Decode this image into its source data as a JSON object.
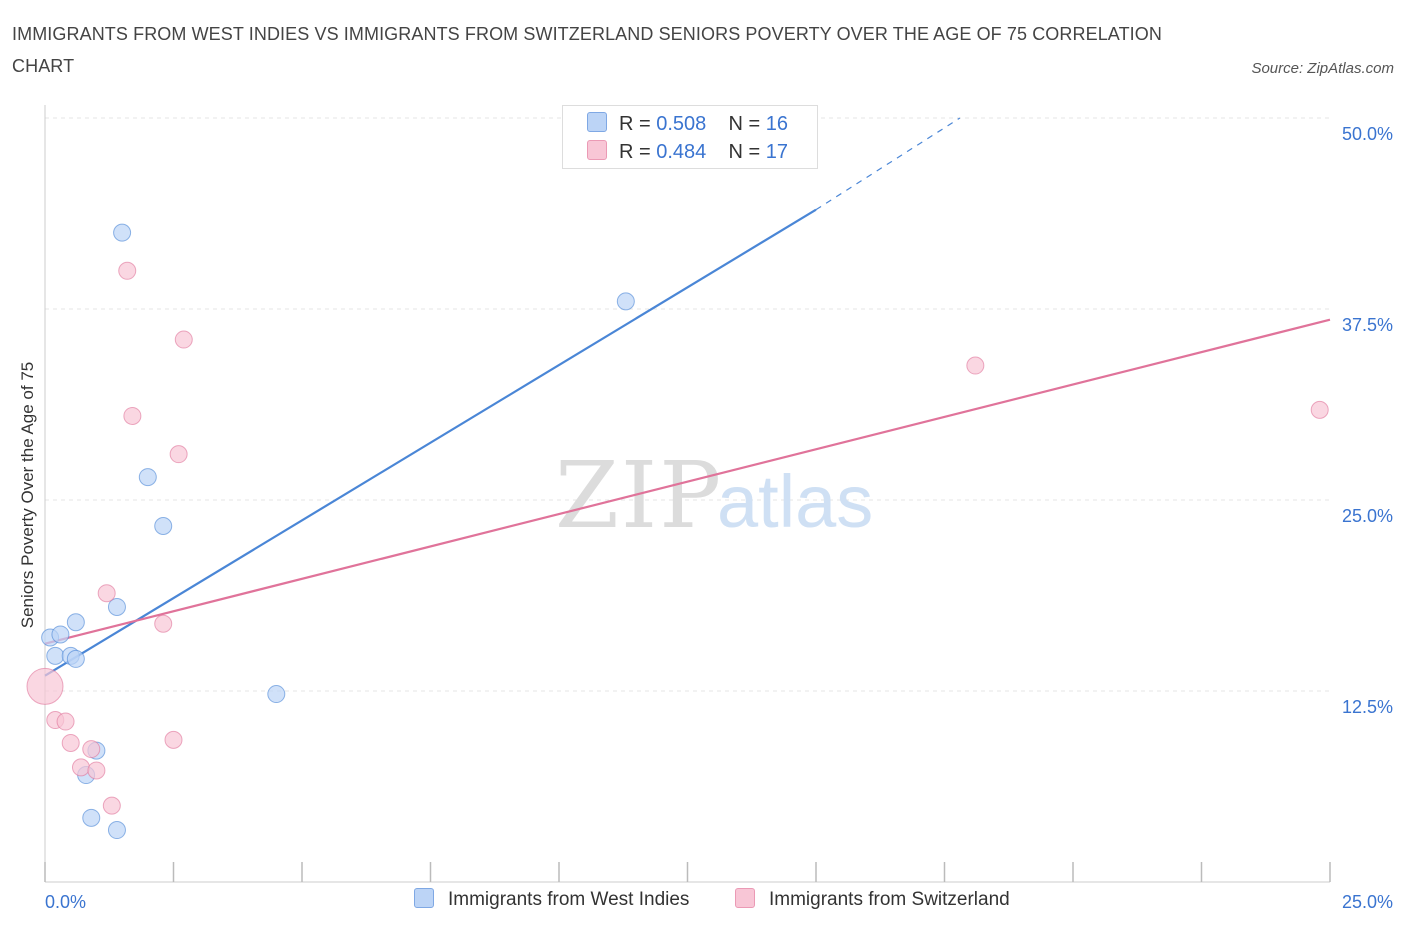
{
  "chart_data": {
    "type": "scatter",
    "title": "IMMIGRANTS FROM WEST INDIES VS IMMIGRANTS FROM SWITZERLAND SENIORS POVERTY OVER THE AGE OF 75 CORRELATION CHART",
    "source": "Source: ZipAtlas.com",
    "xlabel": "",
    "ylabel": "Seniors Poverty Over the Age of 75",
    "xlim": [
      0,
      25
    ],
    "ylim": [
      0,
      50
    ],
    "x_tick_labels": [
      "0.0%",
      "25.0%"
    ],
    "y_tick_labels": [
      "12.5%",
      "25.0%",
      "37.5%",
      "50.0%"
    ],
    "y_ticks": [
      12.5,
      25,
      37.5,
      50
    ],
    "watermark": {
      "zip": "ZIP",
      "atlas": "atlas"
    },
    "legend": {
      "r_label": "R = ",
      "n_label": "N = "
    },
    "series": [
      {
        "name": "Immigrants from West Indies",
        "color": "#4a86d6",
        "fill": "#bcd4f6",
        "r": "0.508",
        "n": "16",
        "points": [
          [
            0.1,
            16.0
          ],
          [
            0.3,
            16.2
          ],
          [
            0.2,
            14.8
          ],
          [
            0.5,
            14.8
          ],
          [
            0.6,
            14.6
          ],
          [
            0.6,
            17.0
          ],
          [
            1.4,
            18.0
          ],
          [
            1.5,
            42.5
          ],
          [
            2.0,
            26.5
          ],
          [
            2.3,
            23.3
          ],
          [
            0.8,
            7.0
          ],
          [
            1.0,
            8.6
          ],
          [
            0.9,
            4.2
          ],
          [
            1.4,
            3.4
          ],
          [
            4.5,
            12.3
          ],
          [
            11.3,
            38.0
          ]
        ],
        "trend": {
          "x0": 0,
          "y0": 13.5,
          "x1": 15.0,
          "y1": 44.0,
          "dash_x1": 17.8,
          "dash_y1": 50.0
        }
      },
      {
        "name": "Immigrants from Switzerland",
        "color": "#e0739a",
        "fill": "#f8c6d6",
        "r": "0.484",
        "n": "17",
        "points": [
          [
            0.0,
            12.8
          ],
          [
            0.2,
            10.6
          ],
          [
            0.4,
            10.5
          ],
          [
            0.5,
            9.1
          ],
          [
            0.7,
            7.5
          ],
          [
            0.9,
            8.7
          ],
          [
            1.0,
            7.3
          ],
          [
            1.2,
            18.9
          ],
          [
            1.3,
            5.0
          ],
          [
            1.6,
            40.0
          ],
          [
            1.7,
            30.5
          ],
          [
            2.3,
            16.9
          ],
          [
            2.5,
            9.3
          ],
          [
            2.6,
            28.0
          ],
          [
            2.7,
            35.5
          ],
          [
            18.1,
            33.8
          ],
          [
            24.8,
            30.9
          ]
        ],
        "trend": {
          "x0": 0,
          "y0": 15.6,
          "x1": 25.0,
          "y1": 36.8
        }
      }
    ]
  }
}
